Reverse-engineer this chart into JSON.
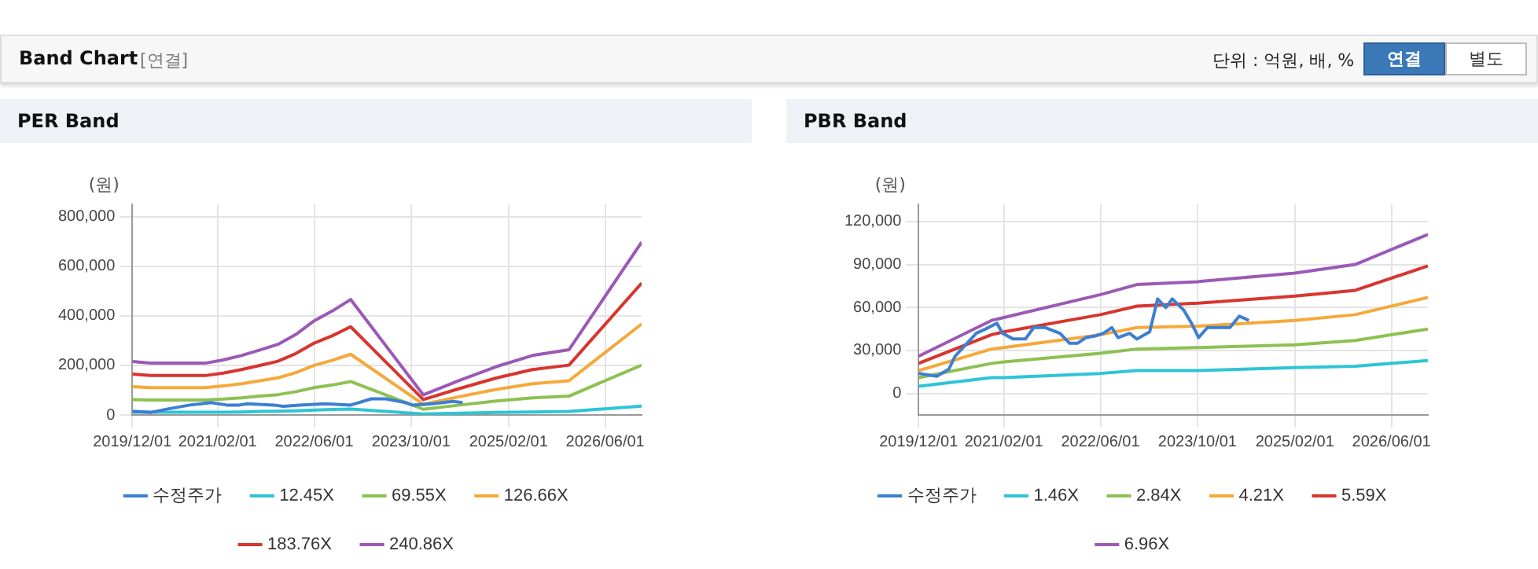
{
  "chart_data": [
    {
      "type": "line",
      "title": "PER Band",
      "ylabel": "(원)",
      "annotations": [
        "Band Chart",
        "[연결]",
        "단위 : 억원, 배, %",
        "연결",
        "별도"
      ],
      "xlim": [
        "2019-12-01",
        "2026-12-01"
      ],
      "xticks": [
        {
          "value": "2019-12-01",
          "label": "2019/12/01"
        },
        {
          "value": "2021-02-01",
          "label": "2021/02/01"
        },
        {
          "value": "2022-06-01",
          "label": "2022/06/01"
        },
        {
          "value": "2023-10-01",
          "label": "2023/10/01"
        },
        {
          "value": "2025-02-01",
          "label": "2025/02/01"
        },
        {
          "value": "2026-06-01",
          "label": "2026/06/01"
        }
      ],
      "ylim": [
        0,
        850000
      ],
      "yticks": [
        0,
        {
          "value": 200000,
          "label": "200,000"
        },
        {
          "value": 400000,
          "label": "400,000"
        },
        {
          "value": 600000,
          "label": "600,000"
        },
        {
          "value": 800000,
          "label": "800,000"
        }
      ],
      "grid": true,
      "legend": "bottom",
      "marker": "none",
      "line_style": "solid",
      "series": [
        {
          "name": "수정주가",
          "color": "#3d7fd1",
          "x": [
            "2019-12-01",
            "2020-03-01",
            "2020-06-01",
            "2020-09-15",
            "2020-12-28",
            "2021-03-20",
            "2021-05-20",
            "2021-07-01",
            "2021-11-10",
            "2021-12-28",
            "2022-03-20",
            "2022-07-28",
            "2022-12-01",
            "2023-03-15",
            "2023-05-28",
            "2023-09-01",
            "2023-10-07",
            "2024-01-15",
            "2024-04-28",
            "2024-06-15"
          ],
          "values": [
            15000,
            10000,
            25000,
            40000,
            50000,
            40000,
            40000,
            45000,
            40000,
            35000,
            40000,
            45000,
            40000,
            65000,
            65000,
            50000,
            40000,
            45000,
            55000,
            50000
          ]
        },
        {
          "name": "12.45X",
          "color": "#2ec4d6",
          "x": [
            "2019-12-01",
            "2020-03-01",
            "2020-12-01",
            "2021-03-01",
            "2021-06-01",
            "2021-09-01",
            "2021-12-01",
            "2022-03-01",
            "2022-06-01",
            "2022-09-01",
            "2022-12-01",
            "2023-12-01",
            "2024-06-01",
            "2024-12-01",
            "2025-06-01",
            "2025-12-01",
            "2026-12-01"
          ],
          "values": [
            11000,
            11000,
            11000,
            11000,
            12000,
            14000,
            15000,
            17000,
            20000,
            22000,
            24000,
            4000,
            7000,
            10000,
            12000,
            14000,
            36000
          ]
        },
        {
          "name": "69.55X",
          "color": "#8dc152",
          "x": [
            "2019-12-01",
            "2020-03-01",
            "2020-12-01",
            "2021-03-01",
            "2021-06-01",
            "2021-09-01",
            "2021-12-01",
            "2022-03-01",
            "2022-06-01",
            "2022-09-01",
            "2022-12-01",
            "2023-12-01",
            "2024-06-01",
            "2024-12-01",
            "2025-06-01",
            "2025-12-01",
            "2026-12-01"
          ],
          "values": [
            62000,
            60000,
            60000,
            64000,
            69000,
            76000,
            82000,
            94000,
            110000,
            121000,
            135000,
            23000,
            40000,
            56000,
            69000,
            76000,
            201000
          ]
        },
        {
          "name": "126.66X",
          "color": "#f5a93a",
          "x": [
            "2019-12-01",
            "2020-03-01",
            "2020-12-01",
            "2021-03-01",
            "2021-06-01",
            "2021-09-01",
            "2021-12-01",
            "2022-03-01",
            "2022-06-01",
            "2022-09-01",
            "2022-12-01",
            "2023-12-01",
            "2024-06-01",
            "2024-12-01",
            "2025-06-01",
            "2025-12-01",
            "2026-12-01"
          ],
          "values": [
            114000,
            110000,
            110000,
            117000,
            126000,
            138000,
            150000,
            171000,
            200000,
            221000,
            245000,
            43000,
            74000,
            103000,
            126000,
            138000,
            367000
          ]
        },
        {
          "name": "183.76X",
          "color": "#d8352f",
          "x": [
            "2019-12-01",
            "2020-03-01",
            "2020-12-01",
            "2021-03-01",
            "2021-06-01",
            "2021-09-01",
            "2021-12-01",
            "2022-03-01",
            "2022-06-01",
            "2022-09-01",
            "2022-12-01",
            "2023-12-01",
            "2024-06-01",
            "2024-12-01",
            "2025-06-01",
            "2025-12-01",
            "2026-12-01"
          ],
          "values": [
            165000,
            159000,
            159000,
            169000,
            183000,
            200000,
            217000,
            248000,
            290000,
            320000,
            356000,
            62000,
            107000,
            149000,
            183000,
            201000,
            532000
          ]
        },
        {
          "name": "240.86X",
          "color": "#9b59b6",
          "x": [
            "2019-12-01",
            "2020-03-01",
            "2020-12-01",
            "2021-03-01",
            "2021-06-01",
            "2021-09-01",
            "2021-12-01",
            "2022-03-01",
            "2022-06-01",
            "2022-09-01",
            "2022-12-01",
            "2023-12-01",
            "2024-06-01",
            "2024-12-01",
            "2025-06-01",
            "2025-12-01",
            "2026-12-01"
          ],
          "values": [
            216000,
            209000,
            209000,
            222000,
            240000,
            262000,
            285000,
            325000,
            380000,
            420000,
            466000,
            81000,
            140000,
            195000,
            240000,
            263000,
            697000
          ]
        }
      ]
    },
    {
      "type": "line",
      "title": "PBR Band",
      "ylabel": "(원)",
      "xlim": [
        "2019-12-01",
        "2026-12-01"
      ],
      "xticks": [
        {
          "value": "2019-12-01",
          "label": "2019/12/01"
        },
        {
          "value": "2021-02-01",
          "label": "2021/02/01"
        },
        {
          "value": "2022-06-01",
          "label": "2022/06/01"
        },
        {
          "value": "2023-10-01",
          "label": "2023/10/01"
        },
        {
          "value": "2025-02-01",
          "label": "2025/02/01"
        },
        {
          "value": "2026-06-01",
          "label": "2026/06/01"
        }
      ],
      "ylim": [
        -15000,
        132000
      ],
      "yticks": [
        0,
        {
          "value": 30000,
          "label": "30,000"
        },
        {
          "value": 60000,
          "label": "60,000"
        },
        {
          "value": 90000,
          "label": "90,000"
        },
        {
          "value": 120000,
          "label": "120,000"
        }
      ],
      "grid": true,
      "legend": "bottom",
      "marker": "none",
      "line_style": "solid",
      "series": [
        {
          "name": "수정주가",
          "color": "#3d7fd1",
          "x": [
            "2019-12-01",
            "2020-03-01",
            "2020-05-01",
            "2020-06-01",
            "2020-08-20",
            "2020-09-15",
            "2020-11-01",
            "2020-12-28",
            "2021-01-25",
            "2021-03-20",
            "2021-05-20",
            "2021-07-01",
            "2021-08-28",
            "2021-11-10",
            "2021-12-28",
            "2022-02-05",
            "2022-03-20",
            "2022-05-01",
            "2022-06-15",
            "2022-07-28",
            "2022-08-28",
            "2022-10-25",
            "2022-12-01",
            "2023-02-03",
            "2023-03-15",
            "2023-04-25",
            "2023-05-28",
            "2023-07-25",
            "2023-09-01",
            "2023-10-07",
            "2023-11-20",
            "2024-01-15",
            "2024-03-12",
            "2024-04-28",
            "2024-06-15"
          ],
          "values": [
            14000,
            12000,
            17000,
            26000,
            38000,
            42000,
            45000,
            49000,
            42000,
            38000,
            38000,
            46000,
            46000,
            42000,
            35000,
            35000,
            39000,
            40000,
            42000,
            46000,
            39000,
            42000,
            38000,
            43000,
            66000,
            60000,
            66000,
            58000,
            49000,
            39000,
            46000,
            46000,
            46000,
            54000,
            51000
          ]
        },
        {
          "name": "1.46X",
          "color": "#2ec4d6",
          "x": [
            "2019-12-01",
            "2020-12-01",
            "2021-02-01",
            "2022-06-01",
            "2022-12-01",
            "2023-10-01",
            "2025-02-01",
            "2025-12-01",
            "2026-12-01"
          ],
          "values": [
            5000,
            11000,
            11000,
            14000,
            16000,
            16000,
            18000,
            19000,
            23000
          ]
        },
        {
          "name": "2.84X",
          "color": "#8dc152",
          "x": [
            "2019-12-01",
            "2020-12-01",
            "2021-02-01",
            "2022-06-01",
            "2022-12-01",
            "2023-10-01",
            "2025-02-01",
            "2025-12-01",
            "2026-12-01"
          ],
          "values": [
            11000,
            21000,
            22000,
            28000,
            31000,
            32000,
            34000,
            37000,
            45000
          ]
        },
        {
          "name": "4.21X",
          "color": "#f5a93a",
          "x": [
            "2019-12-01",
            "2020-12-01",
            "2021-02-01",
            "2022-06-01",
            "2022-12-01",
            "2023-10-01",
            "2025-02-01",
            "2025-12-01",
            "2026-12-01"
          ],
          "values": [
            16000,
            31000,
            32000,
            41000,
            46000,
            47000,
            51000,
            55000,
            67000
          ]
        },
        {
          "name": "5.59X",
          "color": "#d8352f",
          "x": [
            "2019-12-01",
            "2020-12-01",
            "2021-02-01",
            "2022-06-01",
            "2022-12-01",
            "2023-10-01",
            "2025-02-01",
            "2025-12-01",
            "2026-12-01"
          ],
          "values": [
            21000,
            41000,
            43000,
            55000,
            61000,
            63000,
            68000,
            72000,
            89000
          ]
        },
        {
          "name": "6.96X",
          "color": "#9b59b6",
          "x": [
            "2019-12-01",
            "2020-12-01",
            "2021-02-01",
            "2022-06-01",
            "2022-12-01",
            "2023-10-01",
            "2025-02-01",
            "2025-12-01",
            "2026-12-01"
          ],
          "values": [
            26000,
            51000,
            53000,
            69000,
            76000,
            78000,
            84000,
            90000,
            111000
          ]
        }
      ]
    }
  ]
}
